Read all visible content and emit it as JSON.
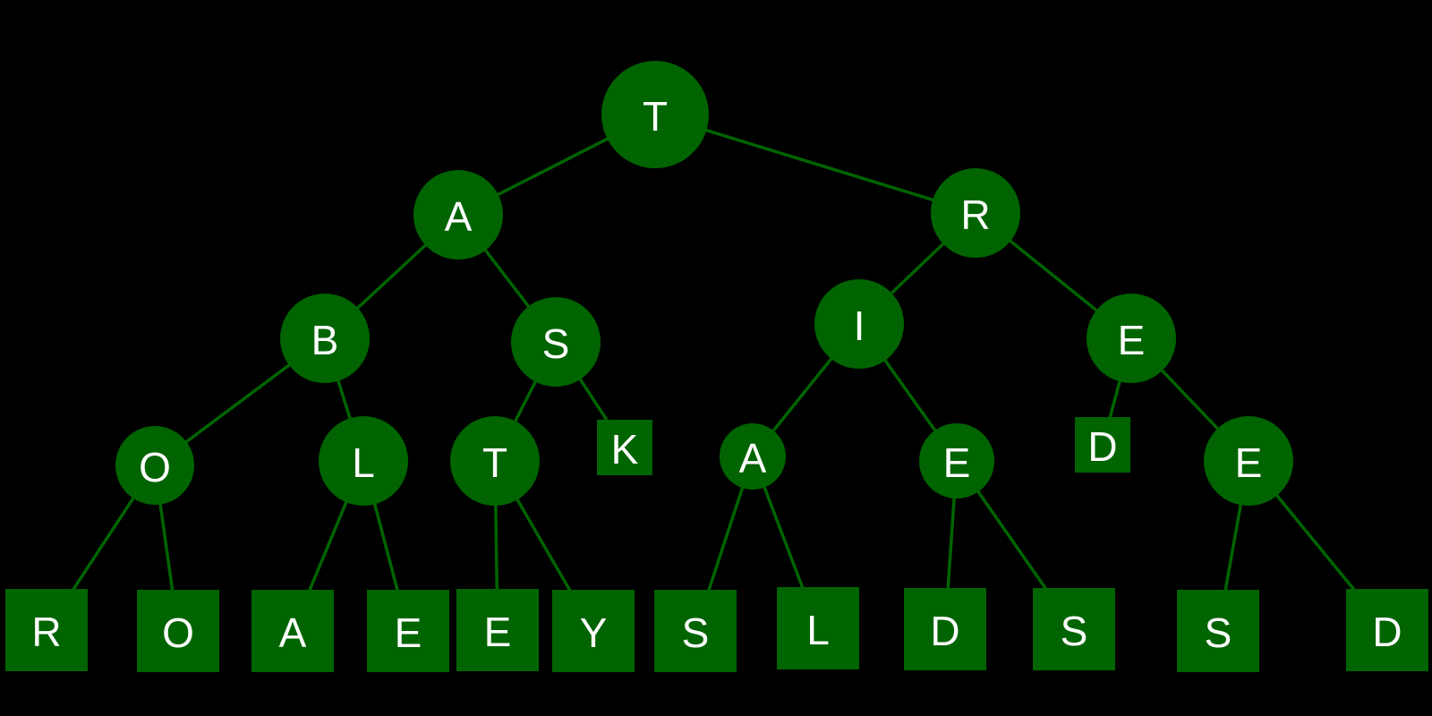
{
  "colors": {
    "background": "#000000",
    "node_fill": "#006400",
    "edge_stroke": "#006400",
    "label": "#ffffff"
  },
  "tree": {
    "nodes": [
      {
        "id": "root",
        "label": "T",
        "kind": "internal"
      },
      {
        "id": "a",
        "label": "A",
        "kind": "internal"
      },
      {
        "id": "r",
        "label": "R",
        "kind": "internal"
      },
      {
        "id": "b",
        "label": "B",
        "kind": "internal"
      },
      {
        "id": "s",
        "label": "S",
        "kind": "internal"
      },
      {
        "id": "i",
        "label": "I",
        "kind": "internal"
      },
      {
        "id": "e1",
        "label": "E",
        "kind": "internal"
      },
      {
        "id": "o",
        "label": "O",
        "kind": "internal"
      },
      {
        "id": "l",
        "label": "L",
        "kind": "internal"
      },
      {
        "id": "t2",
        "label": "T",
        "kind": "internal"
      },
      {
        "id": "k",
        "label": "K",
        "kind": "leaf"
      },
      {
        "id": "a2",
        "label": "A",
        "kind": "internal"
      },
      {
        "id": "e2",
        "label": "E",
        "kind": "internal"
      },
      {
        "id": "d1",
        "label": "D",
        "kind": "leaf"
      },
      {
        "id": "e3",
        "label": "E",
        "kind": "internal"
      },
      {
        "id": "l_r",
        "label": "R",
        "kind": "leaf"
      },
      {
        "id": "l_o",
        "label": "O",
        "kind": "leaf"
      },
      {
        "id": "l_a",
        "label": "A",
        "kind": "leaf"
      },
      {
        "id": "l_e1",
        "label": "E",
        "kind": "leaf"
      },
      {
        "id": "l_e2",
        "label": "E",
        "kind": "leaf"
      },
      {
        "id": "l_y",
        "label": "Y",
        "kind": "leaf"
      },
      {
        "id": "l_s1",
        "label": "S",
        "kind": "leaf"
      },
      {
        "id": "l_l",
        "label": "L",
        "kind": "leaf"
      },
      {
        "id": "l_d1",
        "label": "D",
        "kind": "leaf"
      },
      {
        "id": "l_s2",
        "label": "S",
        "kind": "leaf"
      },
      {
        "id": "l_s3",
        "label": "S",
        "kind": "leaf"
      },
      {
        "id": "l_d2",
        "label": "D",
        "kind": "leaf"
      }
    ],
    "edges": [
      [
        "root",
        "a"
      ],
      [
        "root",
        "r"
      ],
      [
        "a",
        "b"
      ],
      [
        "a",
        "s"
      ],
      [
        "r",
        "i"
      ],
      [
        "r",
        "e1"
      ],
      [
        "b",
        "o"
      ],
      [
        "b",
        "l"
      ],
      [
        "s",
        "t2"
      ],
      [
        "s",
        "k"
      ],
      [
        "i",
        "a2"
      ],
      [
        "i",
        "e2"
      ],
      [
        "e1",
        "d1"
      ],
      [
        "e1",
        "e3"
      ],
      [
        "o",
        "l_r"
      ],
      [
        "o",
        "l_o"
      ],
      [
        "l",
        "l_a"
      ],
      [
        "l",
        "l_e1"
      ],
      [
        "t2",
        "l_e2"
      ],
      [
        "t2",
        "l_y"
      ],
      [
        "a2",
        "l_s1"
      ],
      [
        "a2",
        "l_l"
      ],
      [
        "e2",
        "l_d1"
      ],
      [
        "e2",
        "l_s2"
      ],
      [
        "e3",
        "l_s3"
      ],
      [
        "e3",
        "l_d2"
      ]
    ]
  }
}
